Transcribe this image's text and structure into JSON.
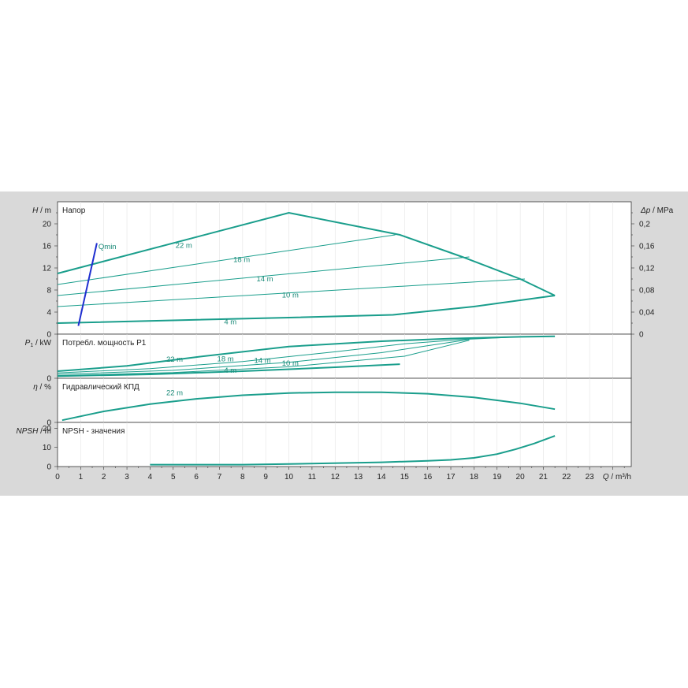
{
  "chart_data": [
    {
      "type": "line",
      "title": "Напор",
      "ylabel_var": "H",
      "ylabel_unit": " / m",
      "right_ylabel_var": "Δp",
      "right_ylabel_unit": " / MPa",
      "xlim": [
        0,
        24.8
      ],
      "ylim": [
        0,
        24
      ],
      "yticks": [
        "0",
        "4",
        "8",
        "12",
        "16",
        "20"
      ],
      "right_ylim": [
        0,
        0.24
      ],
      "right_yticks": [
        "0",
        "0,04",
        "0,08",
        "0,12",
        "0,16",
        "0,2"
      ],
      "series": [
        {
          "name": "22 m",
          "label_at": [
            5.1,
            16.1
          ],
          "x": [
            0,
            10,
            14.8,
            17.5,
            20,
            21.5
          ],
          "y": [
            11,
            22,
            18,
            14,
            10,
            7
          ],
          "bold": true
        },
        {
          "name": "18 m",
          "label_at": [
            7.6,
            13.5
          ],
          "x": [
            0,
            14.6
          ],
          "y": [
            9,
            18
          ],
          "bold": false
        },
        {
          "name": "14 m",
          "label_at": [
            8.6,
            10.0
          ],
          "x": [
            0,
            17.8
          ],
          "y": [
            7,
            14
          ],
          "bold": false
        },
        {
          "name": "10 m",
          "label_at": [
            9.7,
            7.1
          ],
          "x": [
            0,
            20.2
          ],
          "y": [
            5,
            10
          ],
          "bold": false
        },
        {
          "name": "4 m",
          "label_at": [
            7.2,
            2.2
          ],
          "x": [
            0,
            10,
            14.5,
            18,
            21.5
          ],
          "y": [
            2,
            3,
            3.5,
            5,
            7
          ],
          "bold": true
        }
      ],
      "qmin": {
        "name": "Qmin",
        "x": [
          0.9,
          1.7
        ],
        "y": [
          1.5,
          16.5
        ]
      }
    },
    {
      "type": "line",
      "title": "Потребл. мощность P1",
      "ylabel_var": "P",
      "ylabel_sub": "1",
      "ylabel_unit": " / kW",
      "xlim": [
        0,
        24.8
      ],
      "ylim": [
        0,
        1
      ],
      "yticks": [
        "0"
      ],
      "series": [
        {
          "name": "22 m",
          "label_at": [
            4.7,
            0.43
          ],
          "x": [
            0,
            3,
            6,
            10,
            14,
            17,
            20,
            21.5
          ],
          "y": [
            0.16,
            0.28,
            0.48,
            0.72,
            0.84,
            0.9,
            0.94,
            0.95
          ],
          "bold": true
        },
        {
          "name": "18 m",
          "label_at": [
            6.9,
            0.44
          ],
          "x": [
            0,
            4,
            8,
            12,
            15,
            17.5,
            20
          ],
          "y": [
            0.12,
            0.22,
            0.38,
            0.6,
            0.78,
            0.88,
            0.94
          ],
          "bold": false
        },
        {
          "name": "14 m",
          "label_at": [
            8.5,
            0.4
          ],
          "x": [
            0,
            5,
            10,
            14,
            17.8
          ],
          "y": [
            0.09,
            0.18,
            0.36,
            0.58,
            0.88
          ],
          "bold": false
        },
        {
          "name": "10 m",
          "label_at": [
            9.7,
            0.34
          ],
          "x": [
            0,
            5,
            10,
            15,
            17.8
          ],
          "y": [
            0.06,
            0.13,
            0.26,
            0.5,
            0.86
          ],
          "bold": false
        },
        {
          "name": "4 m",
          "label_at": [
            7.2,
            0.18
          ],
          "x": [
            0,
            4,
            8,
            12,
            14.8
          ],
          "y": [
            0.05,
            0.09,
            0.16,
            0.25,
            0.32
          ],
          "bold": true
        }
      ]
    },
    {
      "type": "line",
      "title": "Гидравлический КПД",
      "ylabel_var": "η",
      "ylabel_unit": " / %",
      "xlim": [
        0,
        24.8
      ],
      "ylim": [
        0,
        60
      ],
      "yticks": [
        "0"
      ],
      "series": [
        {
          "name": "22 m",
          "label_at": [
            4.7,
            40
          ],
          "x": [
            0.2,
            2,
            4,
            6,
            8,
            10,
            12,
            14,
            16,
            18,
            20,
            21.5
          ],
          "y": [
            3,
            15,
            25,
            32,
            37,
            40,
            41,
            41,
            39,
            34,
            26,
            18
          ],
          "bold": true
        }
      ]
    },
    {
      "type": "line",
      "title": "NPSH - значения",
      "ylabel_var": "NPSH",
      "ylabel_unit": " / m",
      "xlabel_var": "Q",
      "xlabel_unit": " / m³/h",
      "xlim": [
        0,
        24.8
      ],
      "ylim": [
        0,
        23
      ],
      "yticks": [
        "0",
        "10",
        "20"
      ],
      "xticks": [
        "0",
        "1",
        "2",
        "3",
        "4",
        "5",
        "6",
        "7",
        "8",
        "9",
        "10",
        "11",
        "12",
        "13",
        "14",
        "15",
        "16",
        "17",
        "18",
        "19",
        "20",
        "21",
        "22",
        "23"
      ],
      "series": [
        {
          "name": "NPSH",
          "x": [
            4,
            8,
            10,
            14,
            16,
            17,
            18,
            19,
            19.8,
            20.6,
            21.5
          ],
          "y": [
            1,
            1,
            1.3,
            2.2,
            3,
            3.5,
            4.5,
            6.5,
            9,
            12,
            16
          ],
          "bold": true
        }
      ]
    }
  ]
}
